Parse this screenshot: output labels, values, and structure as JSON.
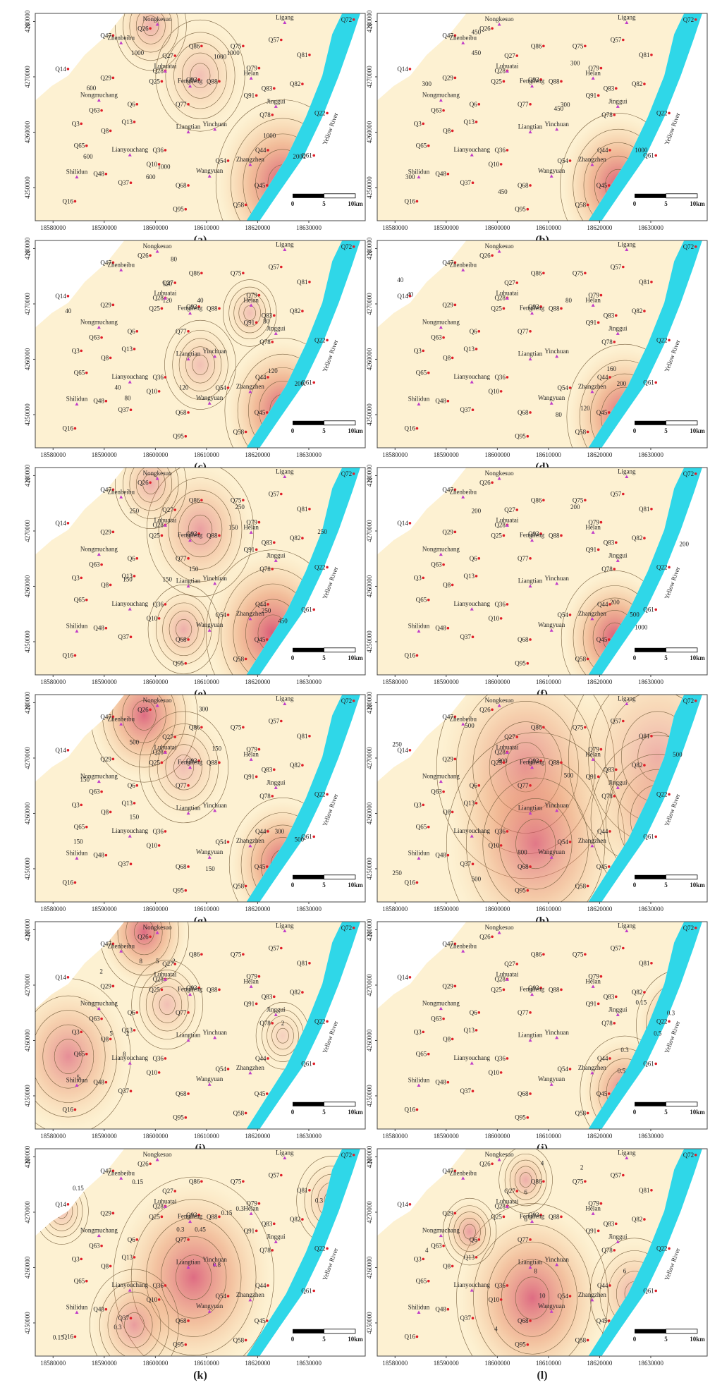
{
  "panels": [
    {
      "label": "(a)",
      "contour_labels": [
        1000,
        600,
        1000,
        1000,
        600,
        600,
        1000,
        1000,
        2000
      ]
    },
    {
      "label": "(b)",
      "contour_labels": [
        450,
        450,
        300,
        300,
        450,
        1000,
        300,
        450,
        300
      ]
    },
    {
      "label": "(c)",
      "contour_labels": [
        120,
        80,
        120,
        40,
        40,
        80,
        120,
        200,
        120,
        80,
        40
      ]
    },
    {
      "label": "(d)",
      "contour_labels": [
        40,
        40,
        80,
        160,
        200,
        80,
        120
      ]
    },
    {
      "label": "(e)",
      "contour_labels": [
        250,
        150,
        150,
        250,
        150,
        150,
        250,
        450,
        250
      ]
    },
    {
      "label": "(f)",
      "contour_labels": [
        200,
        200,
        200,
        200,
        500,
        1000
      ]
    },
    {
      "label": "(g)",
      "contour_labels": [
        500,
        300,
        150,
        150,
        150,
        150,
        300,
        500,
        150
      ]
    },
    {
      "label": "(h)",
      "contour_labels": [
        250,
        500,
        800,
        500,
        500,
        800,
        500,
        250
      ]
    },
    {
      "label": "(i)",
      "contour_labels": [
        8,
        5,
        2,
        2,
        5,
        8,
        5,
        2,
        2
      ]
    },
    {
      "label": "(j)",
      "contour_labels": [
        0.15,
        0.3,
        0.5,
        0.3,
        0.5
      ]
    },
    {
      "label": "(k)",
      "contour_labels": [
        0.15,
        0.15,
        0.3,
        0.3,
        0.45,
        0.8,
        0.15,
        0.3,
        0.15,
        0.3
      ]
    },
    {
      "label": "(l)",
      "contour_labels": [
        4,
        2,
        6,
        4,
        6,
        8,
        10,
        4,
        6
      ]
    }
  ],
  "x_ticks": [
    18580000,
    18590000,
    18600000,
    18610000,
    18620000,
    18630000
  ],
  "y_ticks": [
    4250000,
    4260000,
    4270000,
    4280000
  ],
  "wells": [
    "Q47",
    "Q26",
    "Q86",
    "Q75",
    "Q57",
    "Q72",
    "Q27",
    "Q14",
    "Q29",
    "Q28",
    "Q25",
    "Q93",
    "Q88",
    "Q79",
    "Q81",
    "Q91",
    "Q83",
    "Q82",
    "Q63",
    "Q6",
    "Q77",
    "Q3",
    "Q13",
    "Q8",
    "Q78",
    "Q22",
    "Q65",
    "Q36",
    "Q44",
    "Q54",
    "Q61",
    "Q10",
    "Q48",
    "Q37",
    "Q68",
    "Q45",
    "Q16",
    "Q95",
    "Q58"
  ],
  "towns": [
    "Nongkesuo",
    "Zhenbeibu",
    "Ligang",
    "Luhuatai",
    "Fengdeng",
    "Helan",
    "Nongmuchang",
    "Jinggui",
    "Liangtian",
    "Yinchuan",
    "Lianyouchang",
    "Zhangzhen",
    "Shilidun",
    "Wangyuan"
  ],
  "river": "Yellow River",
  "north": "N",
  "scale_bar_labels": [
    "0",
    "5",
    "10km"
  ]
}
